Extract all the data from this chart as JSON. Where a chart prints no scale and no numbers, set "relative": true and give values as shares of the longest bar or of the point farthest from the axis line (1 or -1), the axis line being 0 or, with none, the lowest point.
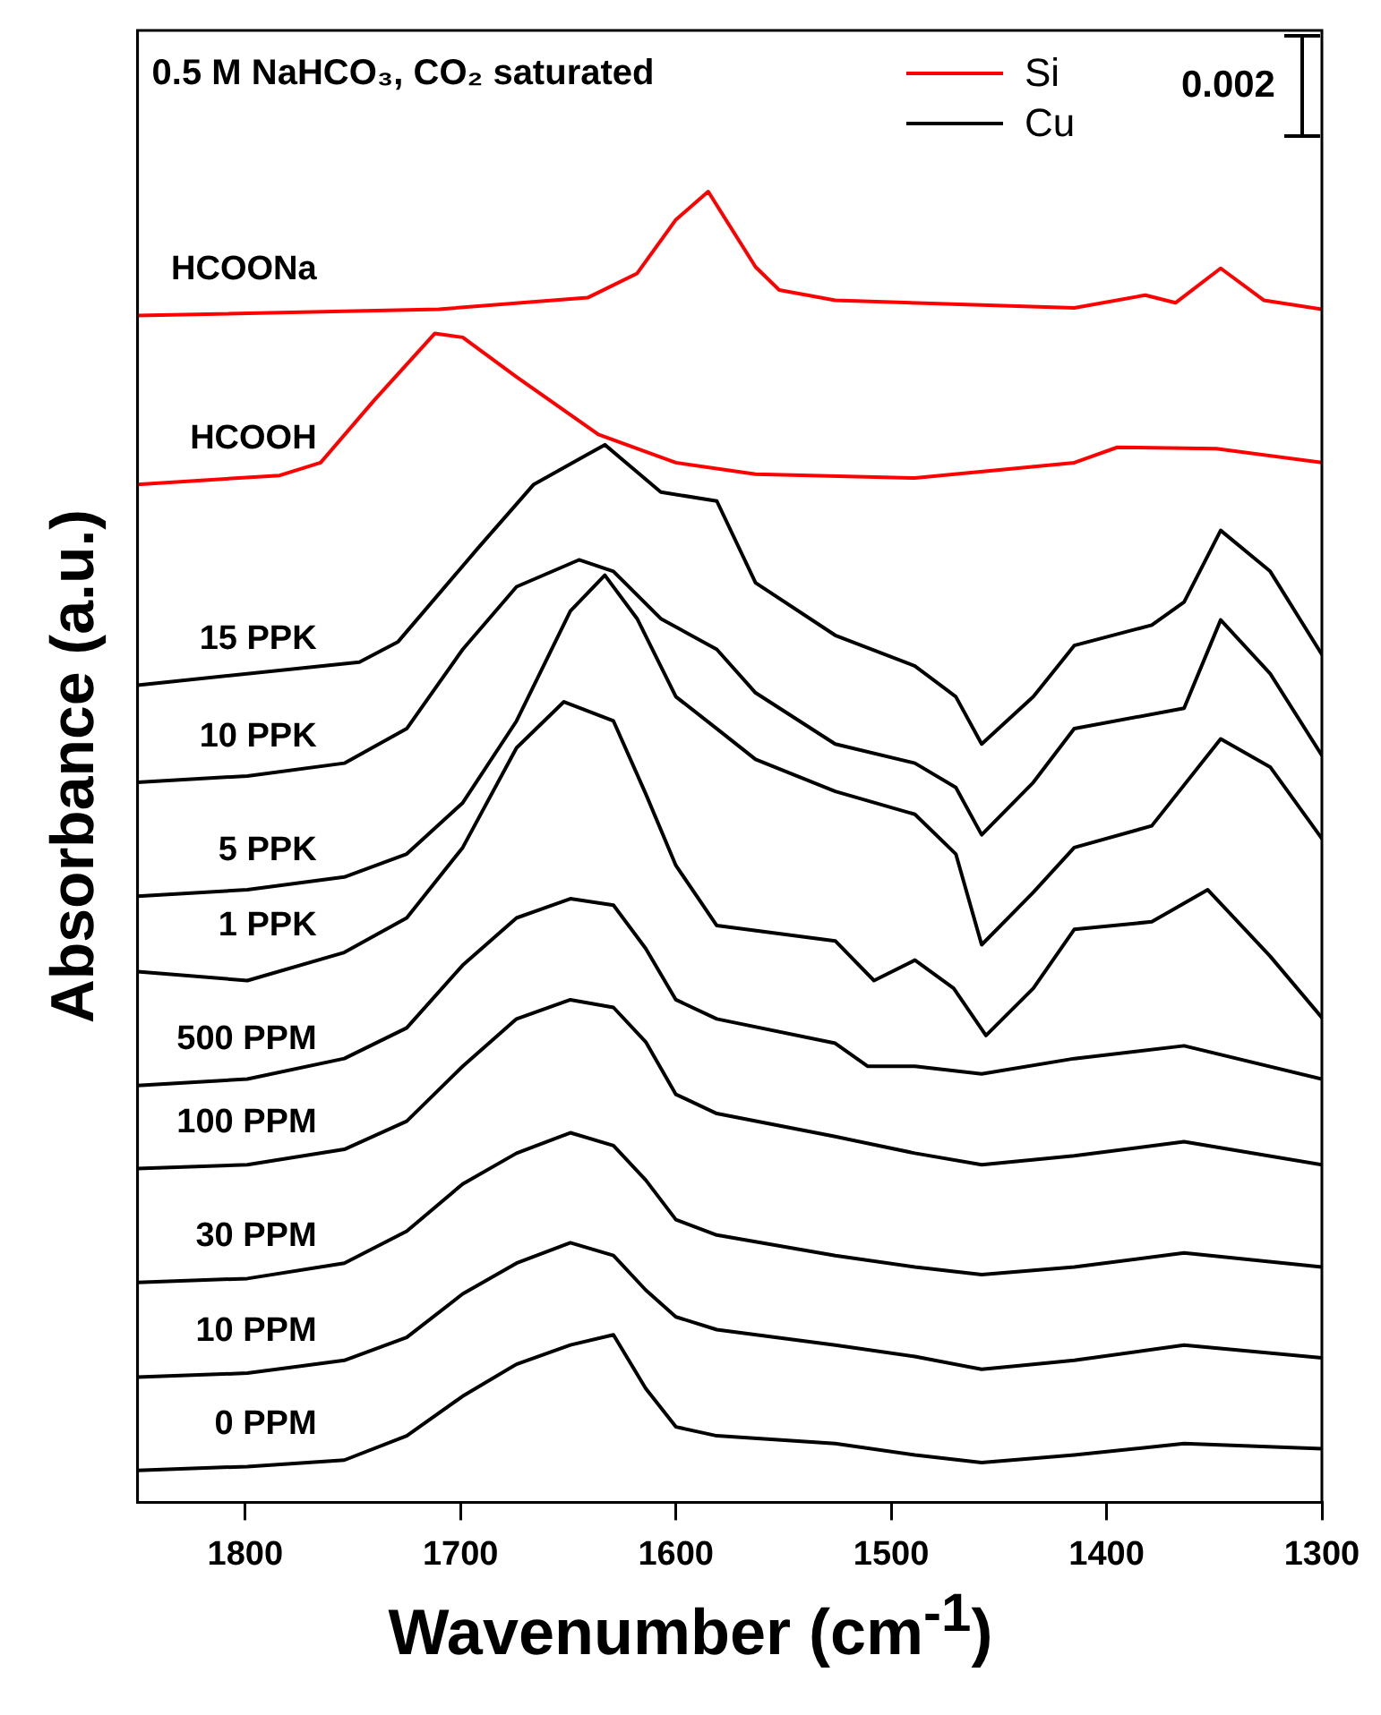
{
  "chart_data": {
    "type": "line",
    "title": "0.5 M NaHCO₃, CO₂ saturated",
    "xlabel": "Wavenumber (cm$^{-1}$)",
    "ylabel": "Absorbance (a.u.)",
    "relative": true,
    "marker": "none",
    "xlim": [
      1850,
      1300
    ],
    "xticks": [
      1800,
      1700,
      1600,
      1500,
      1400,
      1300
    ],
    "annotations": [
      "Si",
      "Cu",
      "0.002"
    ],
    "series": [
      {
        "name": "HCOONa",
        "color": "#ff0000",
        "x": [
          1850,
          1710,
          1641,
          1618,
          1600,
          1585,
          1563,
          1552,
          1526,
          1415,
          1382,
          1368,
          1347,
          1327,
          1300
        ],
        "values": [
          0.903,
          0.908,
          0.917,
          0.936,
          0.978,
          1,
          0.941,
          0.923,
          0.915,
          0.909,
          0.919,
          0.913,
          0.94,
          0.915,
          0.908
        ]
      },
      {
        "name": "HCOOH",
        "color": "#ff0000",
        "x": [
          1850,
          1784,
          1765,
          1740,
          1712,
          1699,
          1674,
          1636,
          1600,
          1563,
          1489,
          1415,
          1395,
          1349,
          1300
        ],
        "values": [
          0.771,
          0.778,
          0.788,
          0.837,
          0.889,
          0.886,
          0.855,
          0.81,
          0.788,
          0.779,
          0.776,
          0.788,
          0.8,
          0.799,
          0.788
        ]
      },
      {
        "name": "15 PPK",
        "color": "#000000",
        "x": [
          1850,
          1747,
          1729,
          1692,
          1666,
          1633,
          1607,
          1581,
          1563,
          1526,
          1489,
          1470,
          1458,
          1434,
          1415,
          1379,
          1364,
          1347,
          1324,
          1300
        ],
        "values": [
          0.614,
          0.632,
          0.648,
          0.721,
          0.771,
          0.802,
          0.765,
          0.758,
          0.694,
          0.653,
          0.629,
          0.605,
          0.568,
          0.605,
          0.645,
          0.661,
          0.679,
          0.735,
          0.703,
          0.638
        ]
      },
      {
        "name": "10 PPK",
        "color": "#000000",
        "x": [
          1850,
          1799,
          1754,
          1725,
          1699,
          1674,
          1645,
          1629,
          1607,
          1581,
          1563,
          1526,
          1489,
          1470,
          1458,
          1434,
          1415,
          1364,
          1347,
          1324,
          1300
        ],
        "values": [
          0.538,
          0.543,
          0.553,
          0.58,
          0.642,
          0.691,
          0.712,
          0.703,
          0.666,
          0.642,
          0.608,
          0.568,
          0.553,
          0.534,
          0.497,
          0.538,
          0.58,
          0.596,
          0.665,
          0.623,
          0.559
        ]
      },
      {
        "name": "5 PPK",
        "color": "#000000",
        "x": [
          1850,
          1799,
          1754,
          1725,
          1699,
          1674,
          1649,
          1633,
          1618,
          1600,
          1581,
          1563,
          1526,
          1489,
          1470,
          1458,
          1434,
          1415,
          1379,
          1347,
          1324,
          1300
        ],
        "values": [
          0.449,
          0.454,
          0.464,
          0.482,
          0.522,
          0.586,
          0.672,
          0.7,
          0.666,
          0.605,
          0.58,
          0.556,
          0.531,
          0.513,
          0.482,
          0.411,
          0.452,
          0.487,
          0.504,
          0.572,
          0.55,
          0.494
        ]
      },
      {
        "name": "1 PPK",
        "color": "#000000",
        "x": [
          1850,
          1799,
          1754,
          1725,
          1699,
          1674,
          1652,
          1629,
          1614,
          1600,
          1581,
          1526,
          1508,
          1489,
          1471,
          1456,
          1434,
          1415,
          1379,
          1353,
          1324,
          1300
        ],
        "values": [
          0.39,
          0.383,
          0.405,
          0.432,
          0.487,
          0.565,
          0.601,
          0.586,
          0.529,
          0.473,
          0.426,
          0.414,
          0.383,
          0.399,
          0.377,
          0.34,
          0.377,
          0.423,
          0.429,
          0.454,
          0.402,
          0.354
        ]
      },
      {
        "name": "500 PPM",
        "color": "#000000",
        "x": [
          1850,
          1799,
          1754,
          1725,
          1699,
          1674,
          1649,
          1629,
          1614,
          1600,
          1581,
          1526,
          1511,
          1489,
          1458,
          1415,
          1364,
          1300
        ],
        "values": [
          0.301,
          0.306,
          0.322,
          0.346,
          0.395,
          0.432,
          0.447,
          0.442,
          0.408,
          0.368,
          0.353,
          0.334,
          0.316,
          0.316,
          0.31,
          0.322,
          0.332,
          0.306
        ]
      },
      {
        "name": "100 PPM",
        "color": "#000000",
        "x": [
          1850,
          1799,
          1754,
          1725,
          1699,
          1674,
          1649,
          1629,
          1614,
          1600,
          1581,
          1526,
          1489,
          1458,
          1415,
          1364,
          1300
        ],
        "values": [
          0.236,
          0.239,
          0.251,
          0.273,
          0.316,
          0.353,
          0.368,
          0.362,
          0.335,
          0.294,
          0.279,
          0.261,
          0.248,
          0.239,
          0.246,
          0.257,
          0.239
        ]
      },
      {
        "name": "30 PPM",
        "color": "#000000",
        "x": [
          1850,
          1799,
          1754,
          1725,
          1699,
          1674,
          1649,
          1629,
          1614,
          1600,
          1581,
          1526,
          1489,
          1458,
          1415,
          1364,
          1300
        ],
        "values": [
          0.147,
          0.15,
          0.162,
          0.187,
          0.224,
          0.248,
          0.264,
          0.254,
          0.227,
          0.196,
          0.184,
          0.168,
          0.159,
          0.153,
          0.159,
          0.17,
          0.159
        ]
      },
      {
        "name": "10 PPM",
        "color": "#000000",
        "x": [
          1850,
          1799,
          1754,
          1725,
          1699,
          1674,
          1649,
          1629,
          1614,
          1600,
          1581,
          1526,
          1489,
          1458,
          1415,
          1364,
          1300
        ],
        "values": [
          0.073,
          0.076,
          0.086,
          0.104,
          0.138,
          0.162,
          0.178,
          0.168,
          0.141,
          0.12,
          0.11,
          0.098,
          0.089,
          0.079,
          0.086,
          0.098,
          0.088
        ]
      },
      {
        "name": "0 PPM",
        "color": "#000000",
        "x": [
          1850,
          1799,
          1754,
          1725,
          1699,
          1674,
          1649,
          1629,
          1614,
          1600,
          1581,
          1526,
          1489,
          1458,
          1415,
          1364,
          1300
        ],
        "values": [
          0,
          0.003,
          0.008,
          0.027,
          0.058,
          0.083,
          0.098,
          0.106,
          0.064,
          0.034,
          0.027,
          0.021,
          0.012,
          0.006,
          0.012,
          0.021,
          0.017
        ]
      }
    ]
  }
}
